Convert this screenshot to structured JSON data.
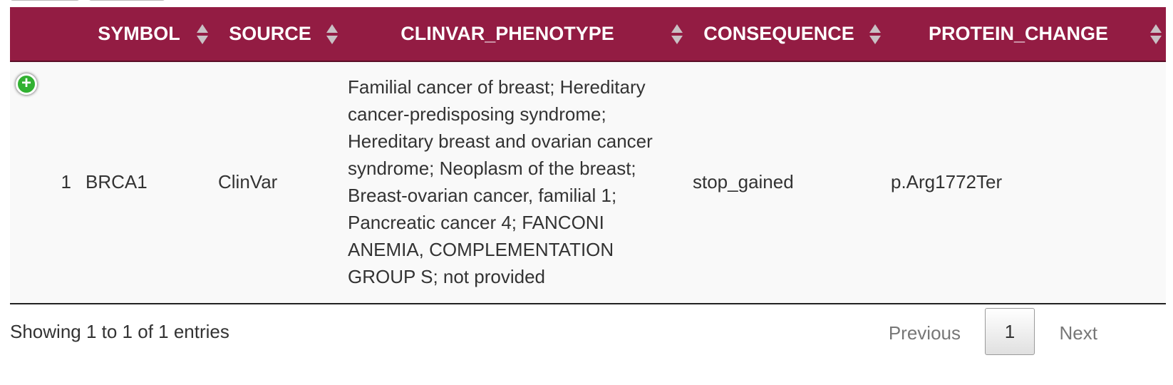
{
  "table": {
    "columns": [
      {
        "label": "",
        "sortable": false
      },
      {
        "label": "SYMBOL",
        "sortable": true
      },
      {
        "label": "SOURCE",
        "sortable": true
      },
      {
        "label": "CLINVAR_PHENOTYPE",
        "sortable": true
      },
      {
        "label": "CONSEQUENCE",
        "sortable": true
      },
      {
        "label": "PROTEIN_CHANGE",
        "sortable": true
      }
    ],
    "rows": [
      {
        "index": "1",
        "symbol": "BRCA1",
        "source": "ClinVar",
        "clinvar_phenotype": "Familial cancer of breast; Hereditary cancer-predisposing syndrome; Hereditary breast and ovarian cancer syndrome; Neoplasm of the breast; Breast-ovarian cancer, familial 1; Pancreatic cancer 4; FANCONI ANEMIA, COMPLEMENTATION GROUP S; not provided",
        "consequence": "stop_gained",
        "protein_change": "p.Arg1772Ter"
      }
    ]
  },
  "footer": {
    "info": "Showing 1 to 1 of 1 entries",
    "previous_label": "Previous",
    "current_page": "1",
    "next_label": "Next"
  },
  "icons": {
    "expand": "plus-circle-icon",
    "sort": "sort-both-icon"
  },
  "colors": {
    "header_bg": "#931c43",
    "header_text": "#ffffff",
    "expand_icon": "#31b131",
    "row_bg": "#f9f9f9"
  }
}
